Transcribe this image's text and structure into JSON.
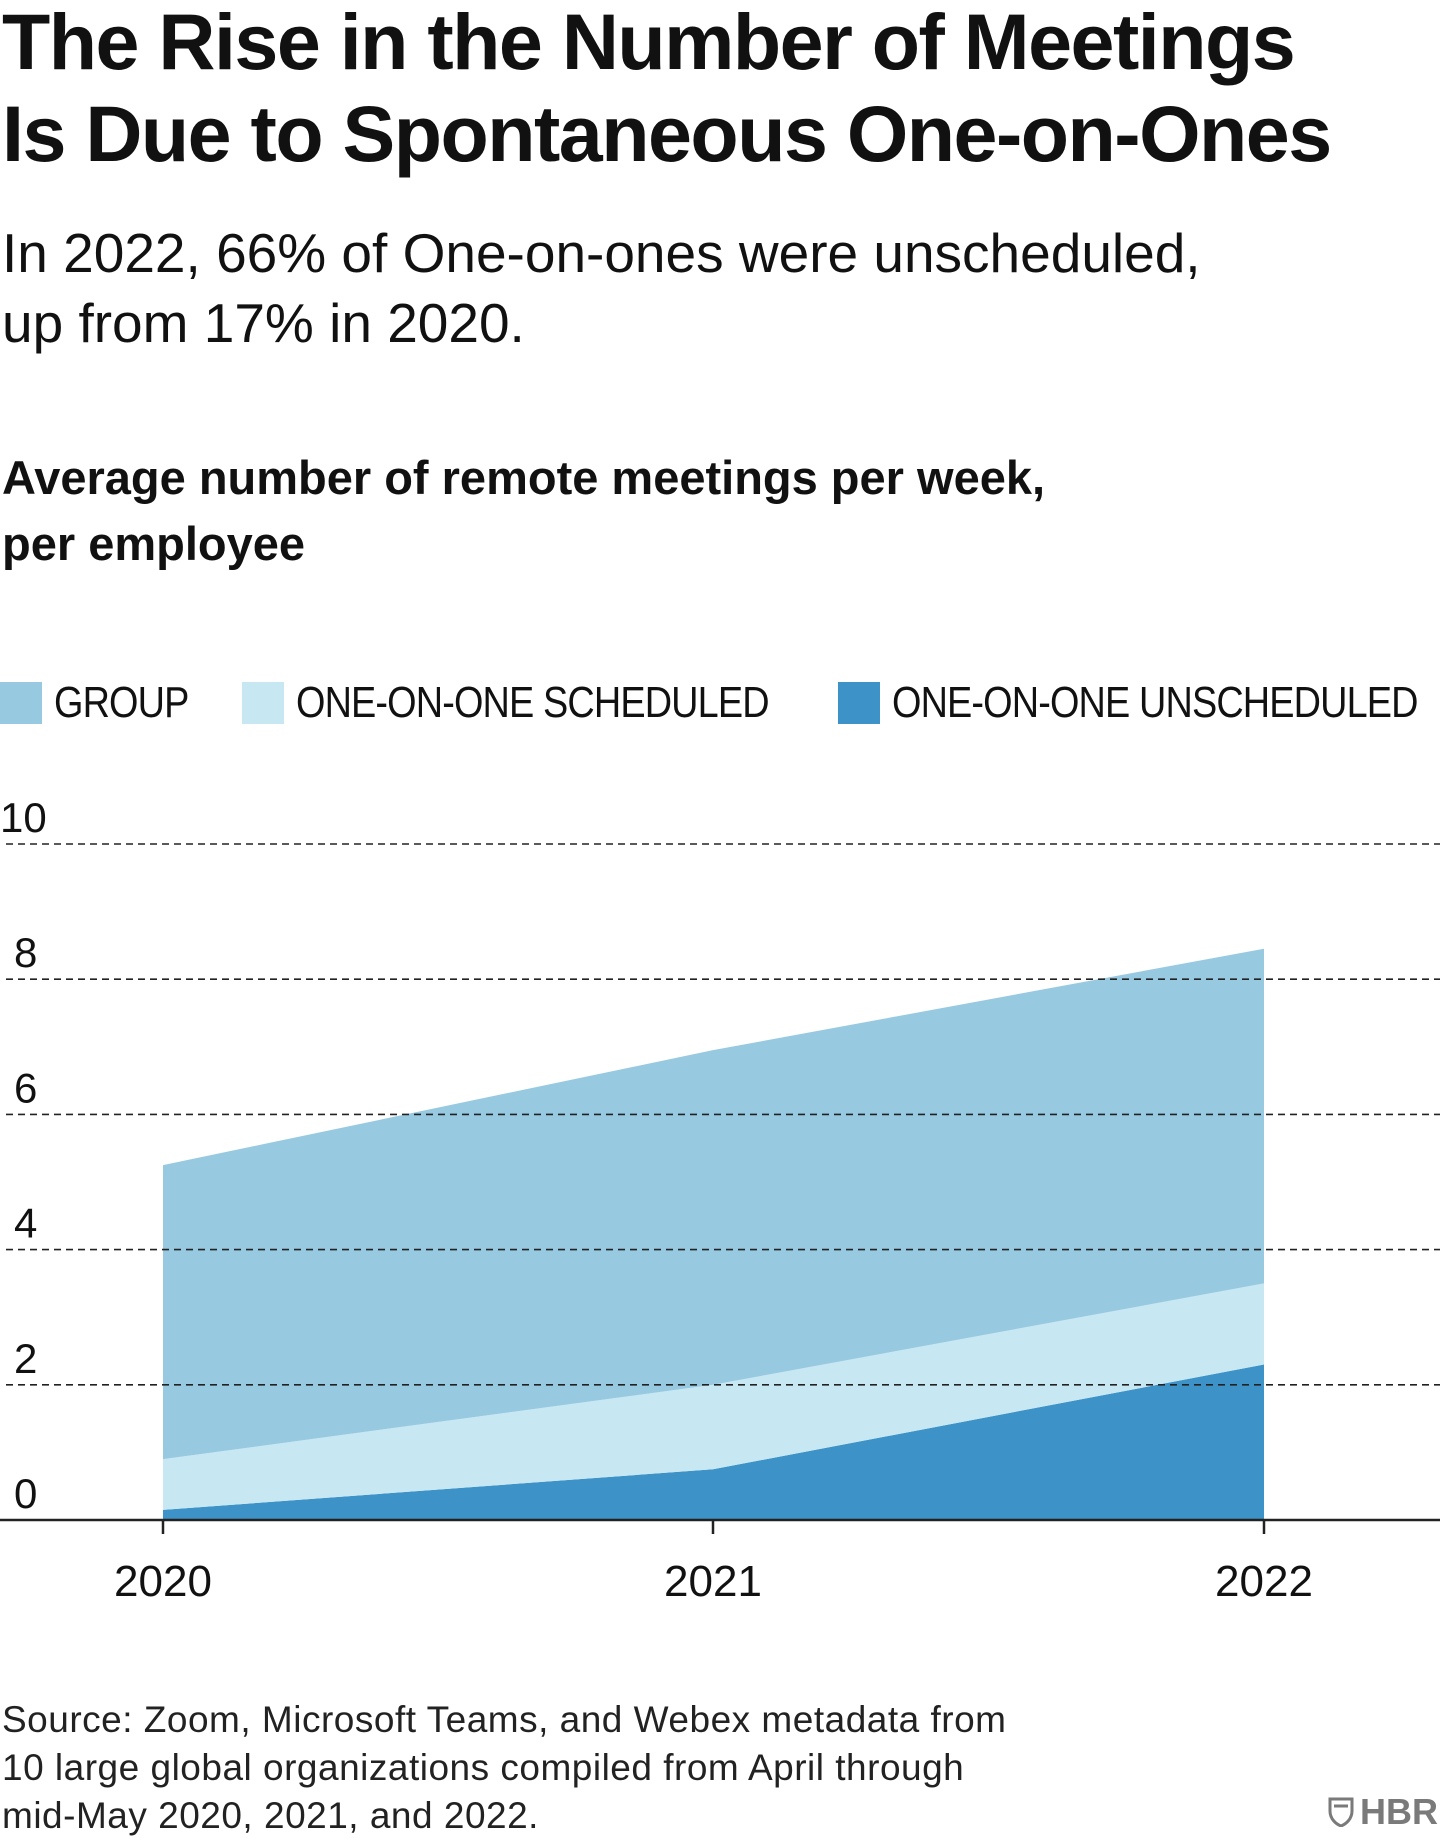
{
  "header": {
    "title_line1": "The Rise in the Number of Meetings",
    "title_line2": "Is Due to Spontaneous One-on-Ones",
    "subtitle_line1": "In 2022, 66% of One-on-ones were unscheduled,",
    "subtitle_line2": "up from 17% in 2020.",
    "chart_heading_line1": "Average number of remote meetings per week,",
    "chart_heading_line2": "per employee"
  },
  "legend": [
    {
      "label": "GROUP",
      "color": "#97c9e1"
    },
    {
      "label": "ONE-ON-ONE SCHEDULED",
      "color": "#c7e7f3"
    },
    {
      "label": "ONE-ON-ONE UNSCHEDULED",
      "color": "#3d93c7"
    }
  ],
  "chart_data": {
    "type": "area",
    "stacked": true,
    "x": [
      "2020",
      "2021",
      "2022"
    ],
    "series": [
      {
        "name": "ONE-ON-ONE UNSCHEDULED",
        "values": [
          0.15,
          0.75,
          2.3
        ],
        "color": "#3d93c7"
      },
      {
        "name": "ONE-ON-ONE SCHEDULED",
        "values": [
          0.75,
          1.25,
          1.2
        ],
        "color": "#c7e7f3"
      },
      {
        "name": "GROUP",
        "values": [
          4.35,
          4.95,
          4.95
        ],
        "color": "#97c9e1"
      }
    ],
    "yticks": [
      0,
      2,
      4,
      6,
      8,
      10
    ],
    "ylim": [
      0,
      10
    ],
    "grid": "dashed horizontal",
    "legend_position": "top"
  },
  "footer": {
    "source_line1": "Source: Zoom, Microsoft Teams, and Webex metadata from",
    "source_line2": "10 large global organizations compiled from April through",
    "source_line3": "mid-May 2020, 2021, and 2022.",
    "logo_text": "HBR"
  }
}
